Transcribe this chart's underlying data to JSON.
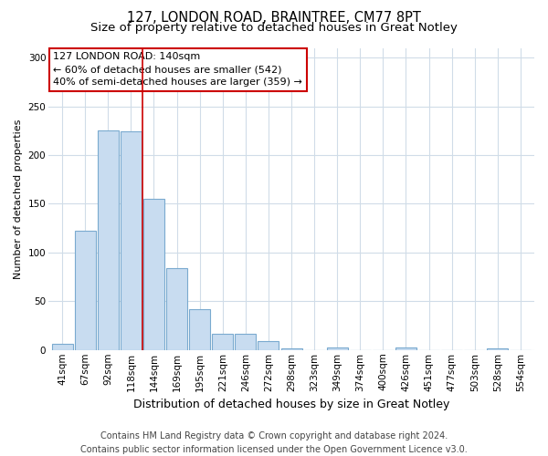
{
  "title": "127, LONDON ROAD, BRAINTREE, CM77 8PT",
  "subtitle": "Size of property relative to detached houses in Great Notley",
  "xlabel": "Distribution of detached houses by size in Great Notley",
  "ylabel": "Number of detached properties",
  "footer_line1": "Contains HM Land Registry data © Crown copyright and database right 2024.",
  "footer_line2": "Contains public sector information licensed under the Open Government Licence v3.0.",
  "bin_labels": [
    "41sqm",
    "67sqm",
    "92sqm",
    "118sqm",
    "144sqm",
    "169sqm",
    "195sqm",
    "221sqm",
    "246sqm",
    "272sqm",
    "298sqm",
    "323sqm",
    "349sqm",
    "374sqm",
    "400sqm",
    "426sqm",
    "451sqm",
    "477sqm",
    "503sqm",
    "528sqm",
    "554sqm"
  ],
  "bar_values": [
    6,
    122,
    225,
    224,
    155,
    84,
    42,
    17,
    17,
    9,
    2,
    0,
    3,
    0,
    0,
    3,
    0,
    0,
    0,
    2,
    0
  ],
  "bar_color": "#c8dcf0",
  "bar_edge_color": "#7aaacf",
  "vline_x_index": 4,
  "vline_color": "#cc0000",
  "annotation_text": "127 LONDON ROAD: 140sqm\n← 60% of detached houses are smaller (542)\n40% of semi-detached houses are larger (359) →",
  "annotation_box_facecolor": "#ffffff",
  "annotation_box_edgecolor": "#cc0000",
  "ylim": [
    0,
    310
  ],
  "yticks": [
    0,
    50,
    100,
    150,
    200,
    250,
    300
  ],
  "fig_bg_color": "#ffffff",
  "ax_bg_color": "#ffffff",
  "grid_color": "#d0dce8",
  "title_fontsize": 10.5,
  "subtitle_fontsize": 9.5,
  "xlabel_fontsize": 9,
  "ylabel_fontsize": 8,
  "tick_fontsize": 7.5,
  "annotation_fontsize": 8,
  "footer_fontsize": 7
}
